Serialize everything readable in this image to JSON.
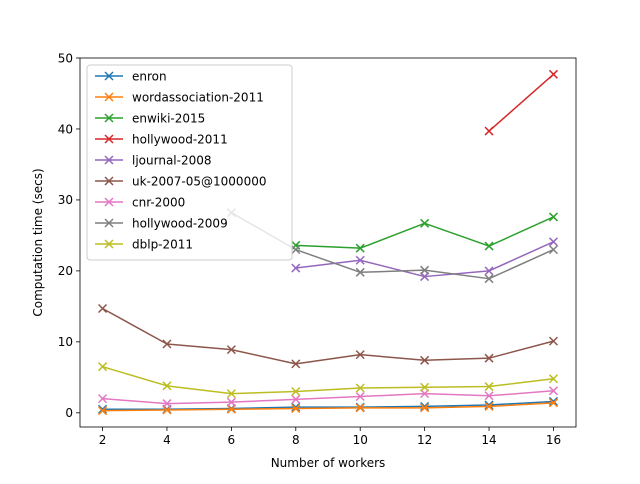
{
  "chart_data": {
    "type": "line",
    "title": "",
    "xlabel": "Number of workers",
    "ylabel": "Computation time (secs)",
    "xlim": [
      1.3,
      16.7
    ],
    "ylim": [
      -2,
      50
    ],
    "xticks": [
      2,
      4,
      6,
      8,
      10,
      12,
      14,
      16
    ],
    "yticks": [
      0,
      10,
      20,
      30,
      40,
      50
    ],
    "grid": false,
    "legend_position": "upper left",
    "series": [
      {
        "name": "enron",
        "color": "#1f77b4",
        "x": [
          2,
          4,
          6,
          8,
          10,
          12,
          14,
          16
        ],
        "y": [
          0.5,
          0.5,
          0.6,
          0.8,
          0.8,
          0.9,
          1.1,
          1.6
        ]
      },
      {
        "name": "wordassociation-2011",
        "color": "#ff7f0e",
        "x": [
          2,
          4,
          6,
          8,
          10,
          12,
          14,
          16
        ],
        "y": [
          0.3,
          0.4,
          0.5,
          0.6,
          0.7,
          0.7,
          0.9,
          1.4
        ]
      },
      {
        "name": "enwiki-2015",
        "color": "#2ca02c",
        "x": [
          8,
          10,
          12,
          14,
          16
        ],
        "y": [
          23.6,
          23.2,
          26.7,
          23.5,
          27.6
        ]
      },
      {
        "name": "hollywood-2011",
        "color": "#d62728",
        "x": [
          14,
          16
        ],
        "y": [
          39.7,
          47.7
        ]
      },
      {
        "name": "ljournal-2008",
        "color": "#9467bd",
        "x": [
          8,
          10,
          12,
          14,
          16
        ],
        "y": [
          20.4,
          21.5,
          19.2,
          20.0,
          24.1
        ]
      },
      {
        "name": "uk-2007-05@1000000",
        "color": "#8c564b",
        "x": [
          2,
          4,
          6,
          8,
          10,
          12,
          14,
          16
        ],
        "y": [
          14.7,
          9.7,
          8.9,
          6.9,
          8.2,
          7.4,
          7.7,
          10.1
        ]
      },
      {
        "name": "cnr-2000",
        "color": "#e377c2",
        "x": [
          2,
          4,
          6,
          8,
          10,
          12,
          14,
          16
        ],
        "y": [
          2.0,
          1.3,
          1.5,
          1.9,
          2.3,
          2.7,
          2.4,
          3.1
        ]
      },
      {
        "name": "hollywood-2009",
        "color": "#7f7f7f",
        "x": [
          6,
          8,
          10,
          12,
          14,
          16
        ],
        "y": [
          28.2,
          23.0,
          19.8,
          20.1,
          18.9,
          23.0
        ]
      },
      {
        "name": "dblp-2011",
        "color": "#bcbd22",
        "x": [
          2,
          4,
          6,
          8,
          10,
          12,
          14,
          16
        ],
        "y": [
          6.5,
          3.8,
          2.7,
          3.0,
          3.5,
          3.6,
          3.7,
          4.8
        ]
      }
    ]
  }
}
